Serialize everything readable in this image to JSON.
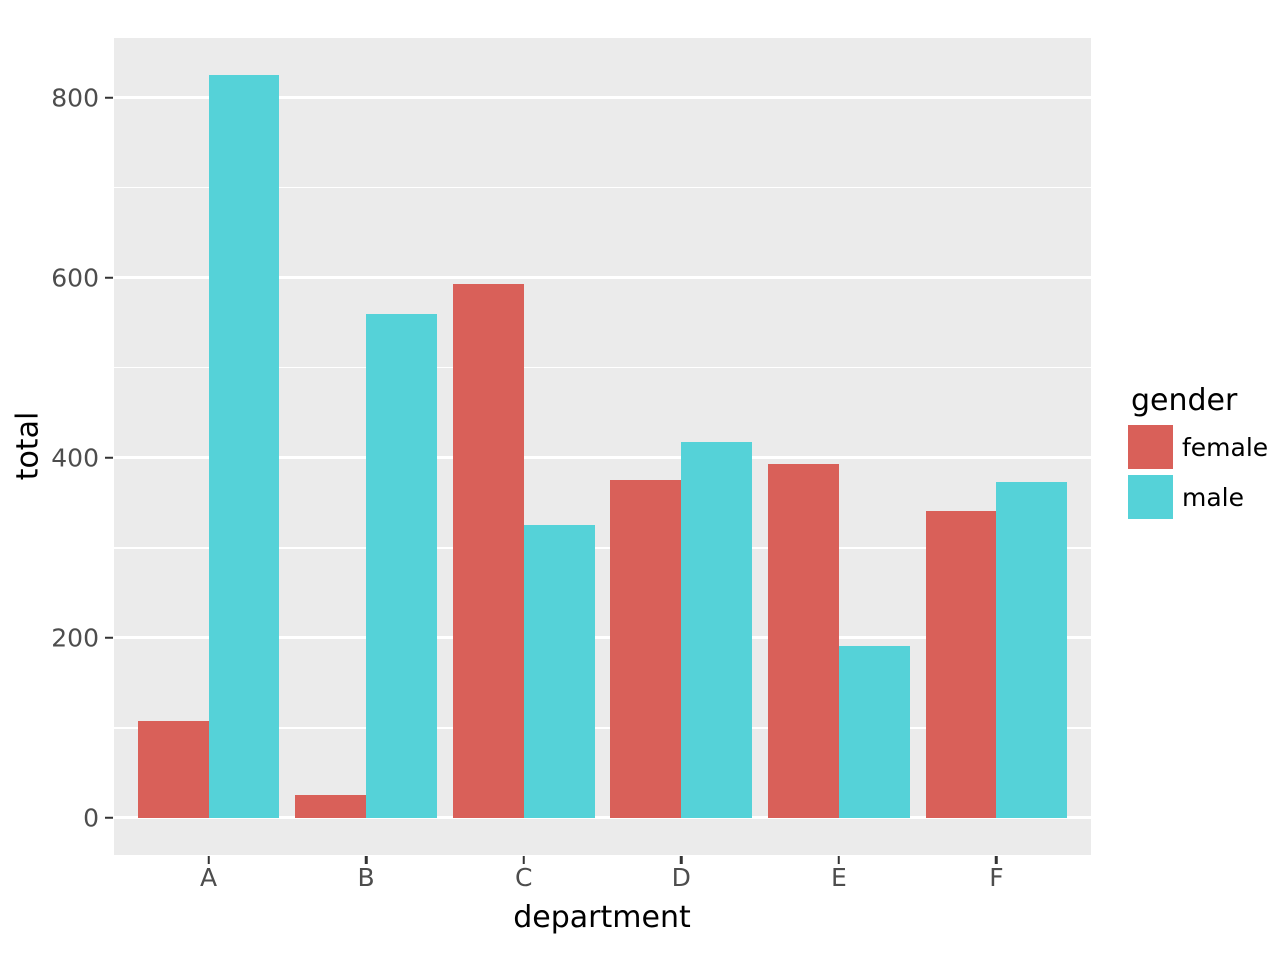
{
  "chart_data": {
    "type": "bar",
    "title": "",
    "xlabel": "department",
    "ylabel": "total",
    "legend_title": "gender",
    "legend_position": "right",
    "categories": [
      "A",
      "B",
      "C",
      "D",
      "E",
      "F"
    ],
    "series": [
      {
        "name": "female",
        "color": "#D96059",
        "values": [
          108,
          25,
          593,
          375,
          393,
          341
        ]
      },
      {
        "name": "male",
        "color": "#55D2D8",
        "values": [
          825,
          560,
          325,
          417,
          191,
          373
        ]
      }
    ],
    "y_ticks": [
      0,
      200,
      400,
      600,
      800
    ],
    "y_minor_ticks": [
      100,
      300,
      500,
      700
    ],
    "ylim": [
      -41.25,
      866.25
    ],
    "grid": true,
    "panel_bg": "#EBEBEB",
    "grid_color": "#FFFFFF",
    "tick_text_color": "#4D4D4D",
    "axis_title_color": "#000000"
  }
}
